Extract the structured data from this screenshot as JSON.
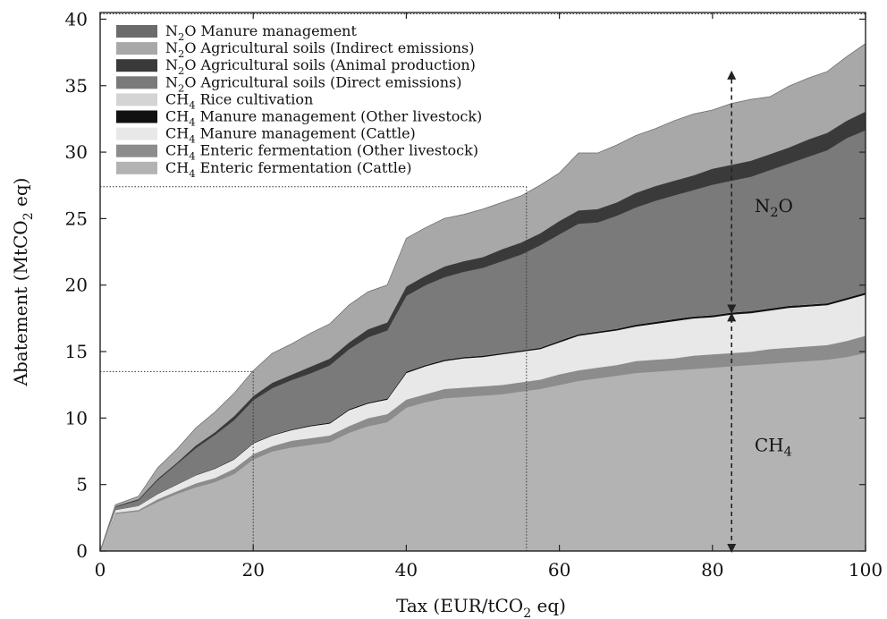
{
  "chart_data": {
    "type": "area",
    "stacked": true,
    "xlabel": "Tax (EUR/tCO2 eq)",
    "ylabel": "Abatement (MtCO2 eq)",
    "xlim": [
      0,
      100
    ],
    "ylim": [
      0,
      40.5
    ],
    "xticks": [
      0,
      20,
      40,
      60,
      80,
      100
    ],
    "yticks": [
      0,
      5,
      10,
      15,
      20,
      25,
      30,
      35,
      40
    ],
    "x": [
      0,
      2,
      5,
      7.5,
      10,
      12.5,
      15,
      17.5,
      20,
      22.5,
      25,
      27.5,
      30,
      32.5,
      35,
      37.5,
      40,
      42.5,
      45,
      47.5,
      50,
      52.5,
      55,
      57.5,
      60,
      62.5,
      65,
      67.5,
      70,
      72.5,
      75,
      77.5,
      80,
      82.5,
      85,
      87.5,
      90,
      92.5,
      95,
      97.5,
      100
    ],
    "legend_position": "top-left",
    "series": [
      {
        "name": "CH4 Enteric fermentation (Cattle)",
        "legend": {
          "pre": "CH",
          "sub": "4",
          "post": " Enteric fermentation (Cattle)"
        },
        "color": "#b3b3b3",
        "values": [
          0,
          2.8,
          3.0,
          3.7,
          4.3,
          4.8,
          5.2,
          5.8,
          6.9,
          7.5,
          7.8,
          8.0,
          8.2,
          8.9,
          9.4,
          9.7,
          10.8,
          11.2,
          11.5,
          11.6,
          11.7,
          11.8,
          12.0,
          12.2,
          12.5,
          12.8,
          13.0,
          13.2,
          13.4,
          13.5,
          13.6,
          13.7,
          13.8,
          13.9,
          14.0,
          14.1,
          14.2,
          14.3,
          14.4,
          14.6,
          14.9
        ]
      },
      {
        "name": "CH4 Enteric fermentation (Other livestock)",
        "legend": {
          "pre": "CH",
          "sub": "4",
          "post": " Enteric fermentation (Other livestock)"
        },
        "color": "#8c8c8c",
        "values": [
          0,
          0.1,
          0.1,
          0.2,
          0.2,
          0.3,
          0.3,
          0.4,
          0.4,
          0.4,
          0.5,
          0.5,
          0.5,
          0.5,
          0.6,
          0.6,
          0.6,
          0.6,
          0.7,
          0.7,
          0.7,
          0.7,
          0.7,
          0.7,
          0.8,
          0.8,
          0.8,
          0.8,
          0.9,
          0.9,
          0.9,
          1.0,
          1.0,
          1.0,
          1.0,
          1.1,
          1.1,
          1.1,
          1.1,
          1.2,
          1.3
        ]
      },
      {
        "name": "CH4 Manure management (Cattle)",
        "legend": {
          "pre": "CH",
          "sub": "4",
          "post": " Manure management (Cattle)"
        },
        "color": "#e8e8e8",
        "values": [
          0,
          0.2,
          0.3,
          0.4,
          0.5,
          0.6,
          0.7,
          0.7,
          0.8,
          0.8,
          0.8,
          0.9,
          0.9,
          1.2,
          1.1,
          1.1,
          2.0,
          2.1,
          2.1,
          2.2,
          2.2,
          2.3,
          2.3,
          2.3,
          2.4,
          2.6,
          2.6,
          2.6,
          2.6,
          2.7,
          2.8,
          2.8,
          2.8,
          2.9,
          2.9,
          2.9,
          3.0,
          3.0,
          3.0,
          3.1,
          3.1
        ]
      },
      {
        "name": "CH4 Manure management (Other livestock)",
        "legend": {
          "pre": "CH",
          "sub": "4",
          "post": " Manure management (Other livestock)"
        },
        "color": "#111111",
        "values": [
          0,
          0.02,
          0.02,
          0.03,
          0.03,
          0.04,
          0.04,
          0.05,
          0.05,
          0.06,
          0.06,
          0.07,
          0.07,
          0.08,
          0.08,
          0.09,
          0.1,
          0.1,
          0.1,
          0.1,
          0.1,
          0.1,
          0.1,
          0.1,
          0.12,
          0.12,
          0.12,
          0.12,
          0.14,
          0.14,
          0.15,
          0.15,
          0.15,
          0.15,
          0.15,
          0.15,
          0.15,
          0.15,
          0.15,
          0.15,
          0.15
        ]
      },
      {
        "name": "CH4 Rice cultivation",
        "legend": {
          "pre": "CH",
          "sub": "4",
          "post": " Rice cultivation"
        },
        "color": "#d4d4d4",
        "values": [
          0,
          0.01,
          0.01,
          0.01,
          0.01,
          0.01,
          0.01,
          0.01,
          0.01,
          0.01,
          0.01,
          0.01,
          0.01,
          0.01,
          0.01,
          0.01,
          0.01,
          0.01,
          0.01,
          0.01,
          0.01,
          0.01,
          0.01,
          0.01,
          0.01,
          0.01,
          0.01,
          0.01,
          0.01,
          0.01,
          0.01,
          0.01,
          0.01,
          0.01,
          0.01,
          0.01,
          0.01,
          0.01,
          0.01,
          0.01,
          0.01
        ]
      },
      {
        "name": "N2O Agricultural soils (Direct emissions)",
        "legend": {
          "pre": "N",
          "sub": "2",
          "post": "O Agricultural soils (Direct emissions)"
        },
        "color": "#7a7a7a",
        "values": [
          0,
          0.2,
          0.4,
          1.0,
          1.5,
          2.0,
          2.5,
          2.9,
          3.2,
          3.5,
          3.7,
          3.9,
          4.3,
          4.5,
          4.9,
          5.1,
          5.7,
          6.0,
          6.2,
          6.4,
          6.6,
          6.9,
          7.2,
          7.7,
          8.0,
          8.3,
          8.2,
          8.5,
          8.8,
          9.1,
          9.3,
          9.5,
          9.8,
          9.9,
          10.1,
          10.4,
          10.7,
          11.1,
          11.5,
          12.0,
          12.2
        ]
      },
      {
        "name": "N2O Agricultural soils (Animal production)",
        "legend": {
          "pre": "N",
          "sub": "2",
          "post": "O Agricultural soils (Animal production)"
        },
        "color": "#3a3a3a",
        "values": [
          0,
          0.05,
          0.08,
          0.1,
          0.1,
          0.2,
          0.2,
          0.3,
          0.3,
          0.4,
          0.4,
          0.5,
          0.5,
          0.5,
          0.6,
          0.6,
          0.7,
          0.7,
          0.8,
          0.8,
          0.8,
          0.9,
          0.9,
          0.9,
          1.0,
          1.0,
          1.0,
          1.0,
          1.1,
          1.1,
          1.1,
          1.1,
          1.2,
          1.2,
          1.2,
          1.2,
          1.2,
          1.3,
          1.3,
          1.3,
          1.4
        ]
      },
      {
        "name": "N2O Agricultural soils (Indirect emissions)",
        "legend": {
          "pre": "N",
          "sub": "2",
          "post": "O Agricultural soils (Indirect emissions)"
        },
        "color": "#a8a8a8",
        "values": [
          0,
          0.1,
          0.2,
          0.8,
          1.0,
          1.3,
          1.5,
          1.7,
          1.9,
          2.2,
          2.3,
          2.5,
          2.6,
          2.8,
          2.8,
          2.8,
          3.6,
          3.6,
          3.6,
          3.5,
          3.6,
          3.5,
          3.5,
          3.6,
          3.6,
          4.3,
          4.2,
          4.3,
          4.3,
          4.3,
          4.5,
          4.6,
          4.4,
          4.6,
          4.6,
          4.3,
          4.6,
          4.6,
          4.6,
          4.8,
          5.1
        ]
      },
      {
        "name": "N2O Manure management",
        "legend": {
          "pre": "N",
          "sub": "2",
          "post": "O Manure management"
        },
        "color": "#6b6b6b",
        "values": [
          0,
          0.01,
          0.01,
          0.01,
          0.01,
          0.01,
          0.01,
          0.01,
          0.01,
          0.01,
          0.01,
          0.01,
          0.01,
          0.01,
          0.01,
          0.01,
          0.01,
          0.01,
          0.01,
          0.01,
          0.01,
          0.01,
          0.01,
          0.01,
          0.01,
          0.01,
          0.01,
          0.01,
          0.01,
          0.01,
          0.01,
          0.01,
          0.01,
          0.01,
          0.01,
          0.01,
          0.01,
          0.01,
          0.01,
          0.01,
          0.01
        ]
      }
    ],
    "guides": {
      "horizontal": [
        13.5,
        27.4,
        40.4
      ],
      "vertical": [
        20,
        55.7
      ]
    },
    "annotations": [
      {
        "key": "n2o",
        "pre": "N",
        "sub": "2",
        "post": "O",
        "x": 85.5,
        "y": 25.5
      },
      {
        "key": "ch4",
        "pre": "CH",
        "sub": "4",
        "post": "",
        "x": 85.5,
        "y": 7.5
      }
    ],
    "arrows": [
      {
        "x": 82.5,
        "y_from": 18.2,
        "y_to": 35.8
      },
      {
        "x": 82.5,
        "y_from": 0.2,
        "y_to": 17.6
      }
    ]
  }
}
